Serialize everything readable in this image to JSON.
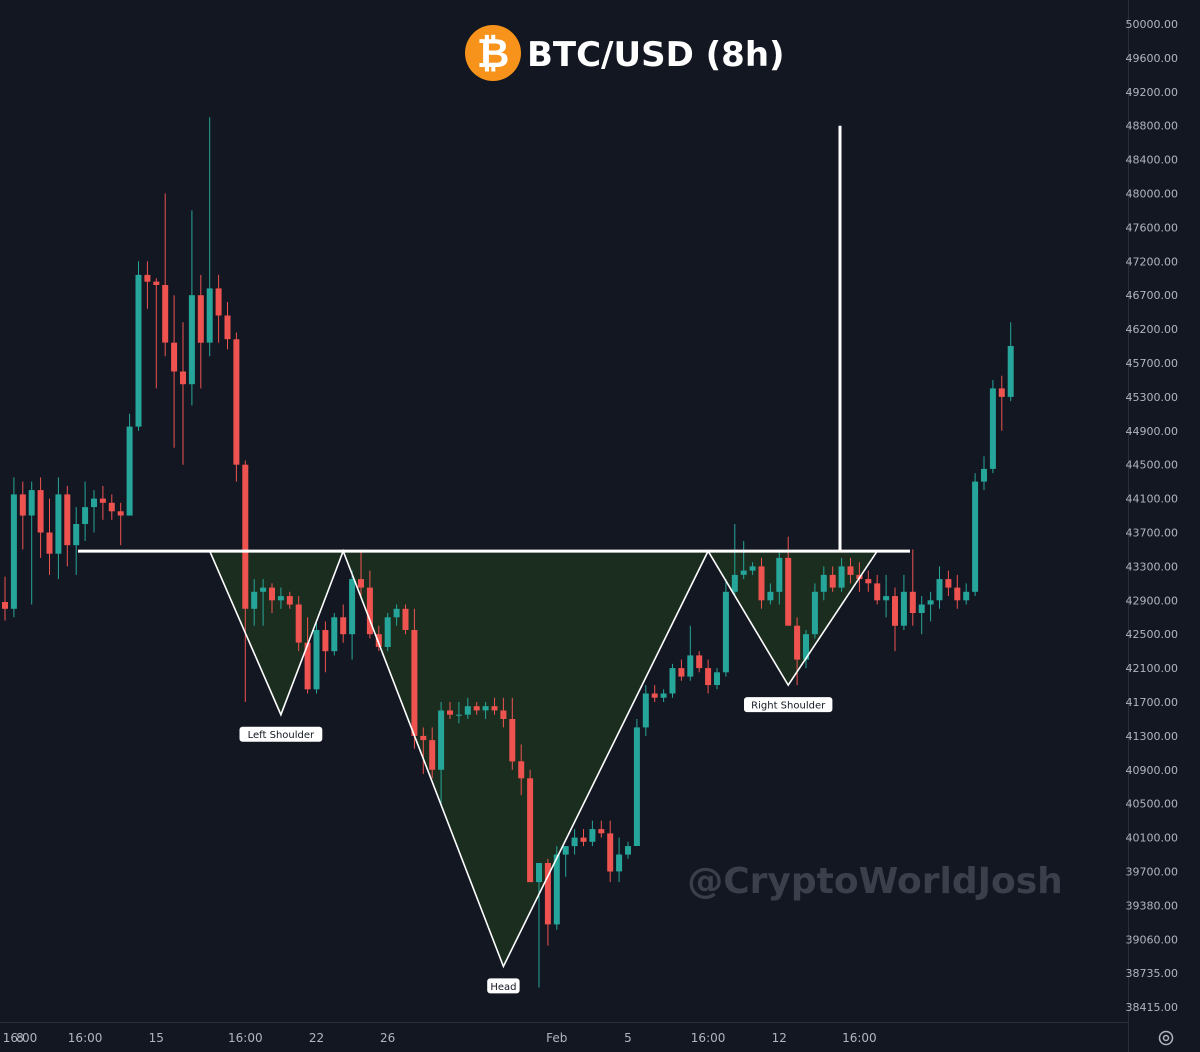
{
  "title": "BTC/USD (8h)",
  "watermark": "@CryptoWorldJosh",
  "icons": {
    "title_icon": "bitcoin-icon",
    "settings_icon": "gear-icon"
  },
  "colors": {
    "background": "#131722",
    "bull": "#26a69a",
    "bear": "#ef5350",
    "pattern_fill": "#1b2e20",
    "line": "#ffffff",
    "bitcoin": "#f7931a"
  },
  "chart_data": {
    "type": "candlestick",
    "title": "BTC/USD (8h)",
    "y_axis": {
      "position": "right",
      "ticks": [
        50000,
        49600,
        49200,
        48800,
        48400,
        48000,
        47600,
        47200,
        46700,
        46200,
        45700,
        45300,
        44900,
        44500,
        44100,
        43700,
        43300,
        42900,
        42500,
        42100,
        41700,
        41300,
        40900,
        40500,
        40100,
        39700,
        39380,
        39060,
        38735,
        38415
      ],
      "tick_labels": [
        "50000.00",
        "49600.00",
        "49200.00",
        "48800.00",
        "48400.00",
        "48000.00",
        "47600.00",
        "47200.00",
        "46700.00",
        "46200.00",
        "45700.00",
        "45300.00",
        "44900.00",
        "44500.00",
        "44100.00",
        "43700.00",
        "43300.00",
        "42900.00",
        "42500.00",
        "42100.00",
        "41700.00",
        "41300.00",
        "40900.00",
        "40500.00",
        "40100.00",
        "39700.00",
        "39380.00",
        "39060.00",
        "38735.00",
        "38415.00"
      ]
    },
    "x_axis": {
      "tick_labels": [
        "16:00",
        "8",
        "16:00",
        "15",
        "16:00",
        "22",
        "26",
        "Feb",
        "5",
        "16:00",
        "12",
        "16:00"
      ],
      "tick_index": [
        -12,
        -1,
        9,
        17,
        27,
        35,
        43,
        62,
        70,
        79,
        87,
        96
      ]
    },
    "candles": [
      {
        "o": 42880,
        "h": 43180,
        "l": 42660,
        "c": 42800
      },
      {
        "o": 42800,
        "h": 44350,
        "l": 42700,
        "c": 44150
      },
      {
        "o": 44150,
        "h": 44300,
        "l": 43500,
        "c": 43900
      },
      {
        "o": 43900,
        "h": 44300,
        "l": 42850,
        "c": 44200
      },
      {
        "o": 44200,
        "h": 44350,
        "l": 43400,
        "c": 43700
      },
      {
        "o": 43700,
        "h": 44100,
        "l": 43200,
        "c": 43450
      },
      {
        "o": 43450,
        "h": 44350,
        "l": 43150,
        "c": 44150
      },
      {
        "o": 44150,
        "h": 44250,
        "l": 43300,
        "c": 43550
      },
      {
        "o": 43550,
        "h": 44000,
        "l": 43200,
        "c": 43800
      },
      {
        "o": 43800,
        "h": 44300,
        "l": 43600,
        "c": 44000
      },
      {
        "o": 44000,
        "h": 44200,
        "l": 43700,
        "c": 44100
      },
      {
        "o": 44100,
        "h": 44250,
        "l": 43850,
        "c": 44050
      },
      {
        "o": 44050,
        "h": 44150,
        "l": 43850,
        "c": 43950
      },
      {
        "o": 43950,
        "h": 44050,
        "l": 43550,
        "c": 43900
      },
      {
        "o": 43900,
        "h": 45100,
        "l": 43900,
        "c": 44950
      },
      {
        "o": 44950,
        "h": 47200,
        "l": 44900,
        "c": 47000
      },
      {
        "o": 47000,
        "h": 47200,
        "l": 46500,
        "c": 46900
      },
      {
        "o": 46900,
        "h": 46950,
        "l": 45400,
        "c": 46850
      },
      {
        "o": 46850,
        "h": 48000,
        "l": 45800,
        "c": 46000
      },
      {
        "o": 46000,
        "h": 46700,
        "l": 44700,
        "c": 45600
      },
      {
        "o": 45600,
        "h": 46300,
        "l": 44500,
        "c": 45450
      },
      {
        "o": 45450,
        "h": 47800,
        "l": 45200,
        "c": 46700
      },
      {
        "o": 46700,
        "h": 47000,
        "l": 45400,
        "c": 46000
      },
      {
        "o": 46000,
        "h": 48900,
        "l": 45800,
        "c": 46800
      },
      {
        "o": 46800,
        "h": 47000,
        "l": 46000,
        "c": 46400
      },
      {
        "o": 46400,
        "h": 46600,
        "l": 45900,
        "c": 46050
      },
      {
        "o": 46050,
        "h": 46150,
        "l": 44300,
        "c": 44500
      },
      {
        "o": 44500,
        "h": 44550,
        "l": 41700,
        "c": 42800
      },
      {
        "o": 42800,
        "h": 43150,
        "l": 42600,
        "c": 43000
      },
      {
        "o": 43000,
        "h": 43150,
        "l": 42600,
        "c": 43050
      },
      {
        "o": 43050,
        "h": 43100,
        "l": 42750,
        "c": 42900
      },
      {
        "o": 42900,
        "h": 43050,
        "l": 42800,
        "c": 42950
      },
      {
        "o": 42950,
        "h": 43000,
        "l": 42800,
        "c": 42850
      },
      {
        "o": 42850,
        "h": 42950,
        "l": 42300,
        "c": 42400
      },
      {
        "o": 42400,
        "h": 42700,
        "l": 41800,
        "c": 41850
      },
      {
        "o": 41850,
        "h": 42650,
        "l": 41800,
        "c": 42550
      },
      {
        "o": 42550,
        "h": 42650,
        "l": 42050,
        "c": 42300
      },
      {
        "o": 42300,
        "h": 42750,
        "l": 42250,
        "c": 42700
      },
      {
        "o": 42700,
        "h": 42850,
        "l": 42400,
        "c": 42500
      },
      {
        "o": 42500,
        "h": 43250,
        "l": 42200,
        "c": 43150
      },
      {
        "o": 43150,
        "h": 43500,
        "l": 42950,
        "c": 43050
      },
      {
        "o": 43050,
        "h": 43250,
        "l": 42450,
        "c": 42500
      },
      {
        "o": 42500,
        "h": 42600,
        "l": 42300,
        "c": 42350
      },
      {
        "o": 42350,
        "h": 42750,
        "l": 42300,
        "c": 42700
      },
      {
        "o": 42700,
        "h": 42850,
        "l": 42600,
        "c": 42800
      },
      {
        "o": 42800,
        "h": 42850,
        "l": 42500,
        "c": 42550
      },
      {
        "o": 42550,
        "h": 42800,
        "l": 41150,
        "c": 41300
      },
      {
        "o": 41300,
        "h": 41400,
        "l": 40850,
        "c": 41250
      },
      {
        "o": 41250,
        "h": 41400,
        "l": 40800,
        "c": 40900
      },
      {
        "o": 40900,
        "h": 41700,
        "l": 40500,
        "c": 41600
      },
      {
        "o": 41600,
        "h": 41700,
        "l": 41500,
        "c": 41550
      },
      {
        "o": 41550,
        "h": 41700,
        "l": 41450,
        "c": 41550
      },
      {
        "o": 41550,
        "h": 41750,
        "l": 41500,
        "c": 41650
      },
      {
        "o": 41650,
        "h": 41700,
        "l": 41550,
        "c": 41600
      },
      {
        "o": 41600,
        "h": 41700,
        "l": 41500,
        "c": 41650
      },
      {
        "o": 41650,
        "h": 41750,
        "l": 41550,
        "c": 41600
      },
      {
        "o": 41600,
        "h": 41750,
        "l": 41400,
        "c": 41500
      },
      {
        "o": 41500,
        "h": 41750,
        "l": 40900,
        "c": 41000
      },
      {
        "o": 41000,
        "h": 41200,
        "l": 40600,
        "c": 40800
      },
      {
        "o": 40800,
        "h": 40900,
        "l": 39600,
        "c": 39600
      },
      {
        "o": 39600,
        "h": 39800,
        "l": 38600,
        "c": 39800
      },
      {
        "o": 39800,
        "h": 39850,
        "l": 39000,
        "c": 39200
      },
      {
        "o": 39200,
        "h": 40000,
        "l": 39150,
        "c": 39900
      },
      {
        "o": 39900,
        "h": 40000,
        "l": 39650,
        "c": 40000
      },
      {
        "o": 40000,
        "h": 40200,
        "l": 39900,
        "c": 40100
      },
      {
        "o": 40100,
        "h": 40200,
        "l": 40000,
        "c": 40050
      },
      {
        "o": 40050,
        "h": 40300,
        "l": 40000,
        "c": 40200
      },
      {
        "o": 40200,
        "h": 40300,
        "l": 40100,
        "c": 40150
      },
      {
        "o": 40150,
        "h": 40300,
        "l": 39600,
        "c": 39700
      },
      {
        "o": 39700,
        "h": 40100,
        "l": 39600,
        "c": 39900
      },
      {
        "o": 39900,
        "h": 40050,
        "l": 39850,
        "c": 40000
      },
      {
        "o": 40000,
        "h": 41500,
        "l": 40000,
        "c": 41400
      },
      {
        "o": 41400,
        "h": 41900,
        "l": 41300,
        "c": 41800
      },
      {
        "o": 41800,
        "h": 41900,
        "l": 41700,
        "c": 41750
      },
      {
        "o": 41750,
        "h": 41850,
        "l": 41700,
        "c": 41800
      },
      {
        "o": 41800,
        "h": 42150,
        "l": 41750,
        "c": 42100
      },
      {
        "o": 42100,
        "h": 42200,
        "l": 41950,
        "c": 42000
      },
      {
        "o": 42000,
        "h": 42600,
        "l": 41950,
        "c": 42250
      },
      {
        "o": 42250,
        "h": 42300,
        "l": 42050,
        "c": 42100
      },
      {
        "o": 42100,
        "h": 42200,
        "l": 41800,
        "c": 41900
      },
      {
        "o": 41900,
        "h": 42100,
        "l": 41850,
        "c": 42050
      },
      {
        "o": 42050,
        "h": 43150,
        "l": 42000,
        "c": 43000
      },
      {
        "o": 43000,
        "h": 43800,
        "l": 42950,
        "c": 43200
      },
      {
        "o": 43200,
        "h": 43600,
        "l": 43150,
        "c": 43250
      },
      {
        "o": 43250,
        "h": 43350,
        "l": 43200,
        "c": 43300
      },
      {
        "o": 43300,
        "h": 43400,
        "l": 42800,
        "c": 42900
      },
      {
        "o": 42900,
        "h": 43100,
        "l": 42850,
        "c": 43000
      },
      {
        "o": 43000,
        "h": 43500,
        "l": 42850,
        "c": 43400
      },
      {
        "o": 43400,
        "h": 43650,
        "l": 42600,
        "c": 42600
      },
      {
        "o": 42600,
        "h": 42700,
        "l": 41900,
        "c": 42200
      },
      {
        "o": 42200,
        "h": 42550,
        "l": 42100,
        "c": 42500
      },
      {
        "o": 42500,
        "h": 43100,
        "l": 42450,
        "c": 43000
      },
      {
        "o": 43000,
        "h": 43300,
        "l": 42900,
        "c": 43200
      },
      {
        "o": 43200,
        "h": 43300,
        "l": 43000,
        "c": 43050
      },
      {
        "o": 43050,
        "h": 43400,
        "l": 43000,
        "c": 43300
      },
      {
        "o": 43300,
        "h": 43400,
        "l": 43100,
        "c": 43200
      },
      {
        "o": 43200,
        "h": 43350,
        "l": 43000,
        "c": 43150
      },
      {
        "o": 43150,
        "h": 43250,
        "l": 43000,
        "c": 43100
      },
      {
        "o": 43100,
        "h": 43200,
        "l": 42850,
        "c": 42900
      },
      {
        "o": 42900,
        "h": 43200,
        "l": 42700,
        "c": 42950
      },
      {
        "o": 42950,
        "h": 43050,
        "l": 42300,
        "c": 42600
      },
      {
        "o": 42600,
        "h": 43200,
        "l": 42550,
        "c": 43000
      },
      {
        "o": 43000,
        "h": 43500,
        "l": 42600,
        "c": 42750
      },
      {
        "o": 42750,
        "h": 42950,
        "l": 42500,
        "c": 42850
      },
      {
        "o": 42850,
        "h": 43000,
        "l": 42650,
        "c": 42900
      },
      {
        "o": 42900,
        "h": 43300,
        "l": 42800,
        "c": 43150
      },
      {
        "o": 43150,
        "h": 43250,
        "l": 42950,
        "c": 43050
      },
      {
        "o": 43050,
        "h": 43200,
        "l": 42800,
        "c": 42900
      },
      {
        "o": 42900,
        "h": 43100,
        "l": 42850,
        "c": 43000
      },
      {
        "o": 43000,
        "h": 44400,
        "l": 42950,
        "c": 44300
      },
      {
        "o": 44300,
        "h": 44600,
        "l": 44200,
        "c": 44450
      },
      {
        "o": 44450,
        "h": 45500,
        "l": 44400,
        "c": 45400
      },
      {
        "o": 45400,
        "h": 45550,
        "l": 44900,
        "c": 45300
      },
      {
        "o": 45300,
        "h": 46300,
        "l": 45250,
        "c": 45950
      }
    ],
    "annotations": [
      {
        "text": "Left Shoulder",
        "index": 36,
        "price": 41550
      },
      {
        "text": "Head",
        "index": 61,
        "price": 38800
      },
      {
        "text": "Right Shoulder",
        "index": 98,
        "price": 41900
      }
    ],
    "neckline_price": 43480,
    "measured_move": {
      "index": 103,
      "from_price": 43480,
      "to_price": 48800
    },
    "pattern": "inverse head and shoulders"
  }
}
